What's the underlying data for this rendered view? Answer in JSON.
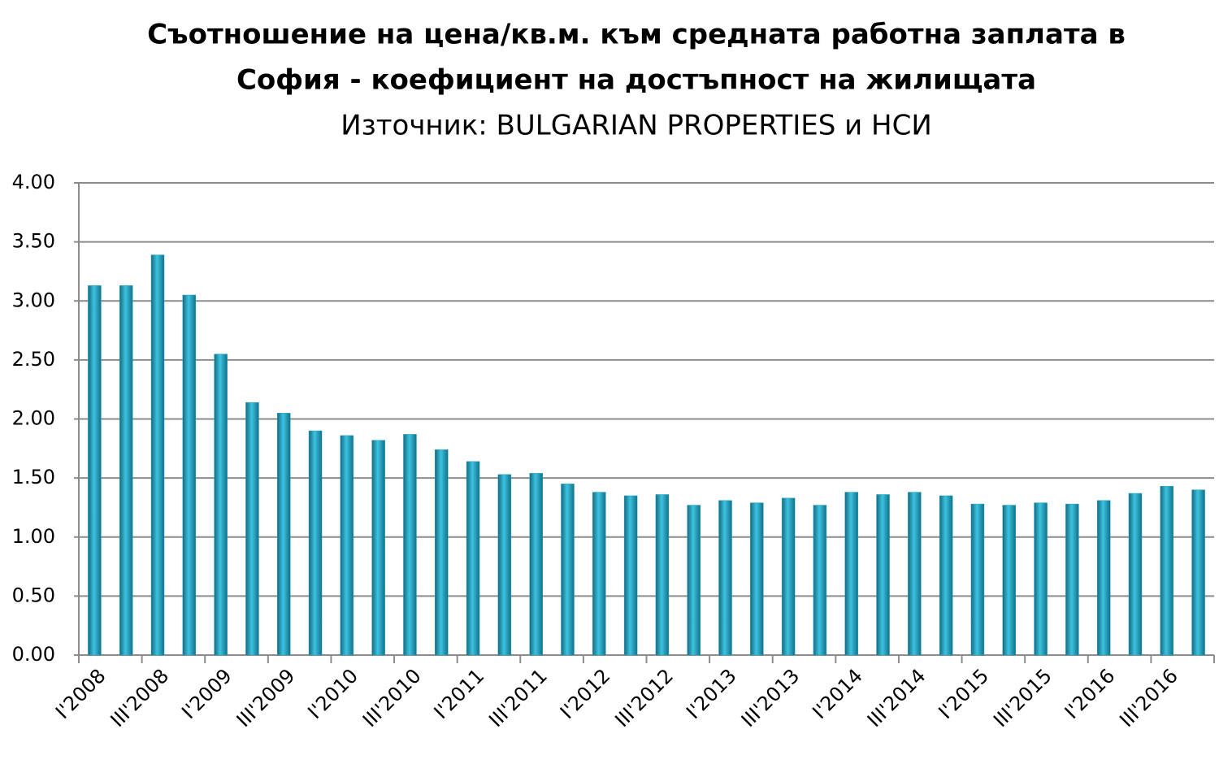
{
  "chart_data": {
    "type": "bar",
    "title": [
      "Съотношение на цена/кв.м. към средната работна заплата в",
      "София - коефициент на достъпност на жилищата"
    ],
    "subtitle": "Източник: BULGARIAN PROPERTIES и НСИ",
    "categories": [
      "I'2008",
      null,
      "III'2008",
      null,
      "I'2009",
      null,
      "III'2009",
      null,
      "I'2010",
      null,
      "III'2010",
      null,
      "I'2011",
      null,
      "III'2011",
      null,
      "I'2012",
      null,
      "III'2012",
      null,
      "I'2013",
      null,
      "III'2013",
      null,
      "I'2014",
      null,
      "III'2014",
      null,
      "I'2015",
      null,
      "III'2015",
      null,
      "I'2016",
      null,
      "III'2016",
      null
    ],
    "values": [
      3.13,
      3.13,
      3.39,
      3.05,
      2.55,
      2.14,
      2.05,
      1.9,
      1.86,
      1.82,
      1.87,
      1.74,
      1.64,
      1.53,
      1.54,
      1.45,
      1.38,
      1.35,
      1.36,
      1.27,
      1.31,
      1.29,
      1.33,
      1.27,
      1.38,
      1.36,
      1.38,
      1.35,
      1.28,
      1.27,
      1.29,
      1.28,
      1.31,
      1.37,
      1.43,
      1.4
    ],
    "color": "#2aa6c4",
    "ylim": [
      0,
      4
    ],
    "yticks": [
      {
        "value": 0,
        "label": "0.00"
      },
      {
        "value": 0.5,
        "label": "0.50"
      },
      {
        "value": 1,
        "label": "1.00"
      },
      {
        "value": 1.5,
        "label": "1.50"
      },
      {
        "value": 2,
        "label": "2.00"
      },
      {
        "value": 2.5,
        "label": "2.50"
      },
      {
        "value": 3,
        "label": "3.00"
      },
      {
        "value": 3.5,
        "label": "3.50"
      },
      {
        "value": 4,
        "label": "4.00"
      }
    ],
    "grid": true
  }
}
